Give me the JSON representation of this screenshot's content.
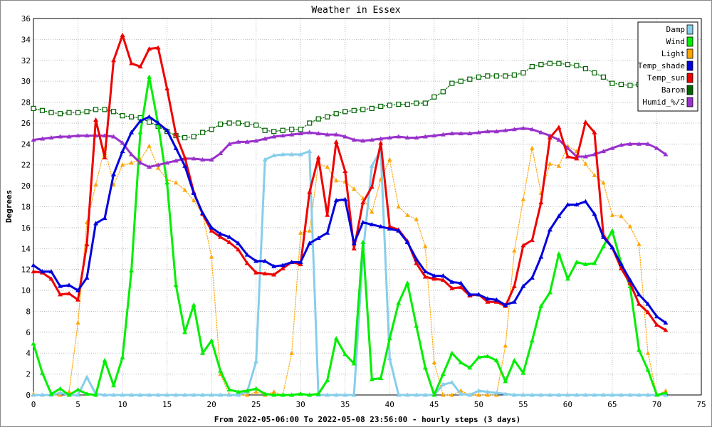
{
  "chart_data": {
    "type": "line",
    "title": "Weather in Essex",
    "xlabel": "From 2022-05-06:00 To 2022-05-08 23:56:00 - hourly steps (3 days)",
    "ylabel": "Degrees",
    "xlim": [
      0,
      75
    ],
    "ylim": [
      0,
      36
    ],
    "x_ticks": [
      0,
      5,
      10,
      15,
      20,
      25,
      30,
      35,
      40,
      45,
      50,
      55,
      60,
      65,
      70,
      75
    ],
    "y_ticks": [
      0,
      2,
      4,
      6,
      8,
      10,
      12,
      14,
      16,
      18,
      20,
      22,
      24,
      26,
      28,
      30,
      32,
      34,
      36
    ],
    "grid": true,
    "legend_position": "top-right",
    "series": [
      {
        "name": "Damp",
        "color": "#87ceeb",
        "style": "solid",
        "x": [
          0,
          1,
          2,
          3,
          4,
          5,
          6,
          7,
          8,
          9,
          10,
          11,
          12,
          13,
          14,
          15,
          16,
          17,
          18,
          19,
          20,
          21,
          22,
          23,
          24,
          25,
          26,
          27,
          28,
          29,
          30,
          31,
          32,
          33,
          34,
          35,
          36,
          37,
          38,
          39,
          40,
          41,
          42,
          43,
          44,
          45,
          46,
          47,
          48,
          49,
          50,
          51,
          52,
          53,
          54,
          55,
          56,
          57,
          58,
          59,
          60,
          61,
          62,
          63,
          64,
          65,
          66,
          67,
          68,
          69,
          70,
          71
        ],
        "values": [
          0,
          0,
          0,
          0.2,
          0,
          0,
          1.7,
          0.1,
          0,
          0,
          0,
          0,
          0,
          0,
          0,
          0,
          0,
          0,
          0,
          0,
          0,
          0,
          0,
          0,
          0.3,
          3.2,
          22.5,
          22.9,
          23.0,
          23.0,
          23.0,
          23.3,
          0,
          0,
          0,
          0,
          0,
          13.5,
          21.9,
          23.4,
          3.5,
          0,
          0,
          0,
          0,
          0,
          1.0,
          1.2,
          0.1,
          0,
          0.4,
          0.3,
          0.2,
          0.1,
          0,
          0,
          0,
          0,
          0,
          0,
          0,
          0,
          0,
          0,
          0,
          0,
          0,
          0,
          0,
          0,
          0,
          0
        ]
      },
      {
        "name": "Wind",
        "color": "#00ee00",
        "style": "thick",
        "x": [
          0,
          1,
          2,
          3,
          4,
          5,
          6,
          7,
          8,
          9,
          10,
          11,
          12,
          13,
          14,
          15,
          16,
          17,
          18,
          19,
          20,
          21,
          22,
          23,
          24,
          25,
          26,
          27,
          28,
          29,
          30,
          31,
          32,
          33,
          34,
          35,
          36,
          37,
          38,
          39,
          40,
          41,
          42,
          43,
          44,
          45,
          46,
          47,
          48,
          49,
          50,
          51,
          52,
          53,
          54,
          55,
          56,
          57,
          58,
          59,
          60,
          61,
          62,
          63,
          64,
          65,
          66,
          67,
          68,
          69,
          70,
          71
        ],
        "values": [
          4.9,
          2.1,
          0.1,
          0.6,
          0,
          0.5,
          0.1,
          0,
          3.3,
          0.9,
          3.6,
          11.9,
          25.1,
          30.4,
          25.9,
          20.3,
          10.5,
          6.0,
          8.6,
          4.0,
          5.2,
          2.3,
          0.5,
          0.3,
          0.4,
          0.6,
          0.1,
          0,
          0,
          0,
          0.1,
          0,
          0.1,
          1.4,
          5.4,
          3.9,
          3.0,
          14.6,
          1.5,
          1.6,
          5.4,
          8.8,
          10.7,
          6.6,
          2.6,
          0,
          2.0,
          4.0,
          3.1,
          2.6,
          3.6,
          3.7,
          3.3,
          1.3,
          3.3,
          2.1,
          5.2,
          8.5,
          9.8,
          13.5,
          11.1,
          12.7,
          12.5,
          12.6,
          14.2,
          15.7,
          12.6,
          10.4,
          4.3,
          2.4,
          0,
          0.2
        ]
      },
      {
        "name": "Light",
        "color": "#ffa500",
        "style": "dotted",
        "x": [
          0,
          1,
          2,
          3,
          4,
          5,
          6,
          7,
          8,
          9,
          10,
          11,
          12,
          13,
          14,
          15,
          16,
          17,
          18,
          19,
          20,
          21,
          22,
          23,
          24,
          25,
          26,
          27,
          28,
          29,
          30,
          31,
          32,
          33,
          34,
          35,
          36,
          37,
          38,
          39,
          40,
          41,
          42,
          43,
          44,
          45,
          46,
          47,
          48,
          49,
          50,
          51,
          52,
          53,
          54,
          55,
          56,
          57,
          58,
          59,
          60,
          61,
          62,
          63,
          64,
          65,
          66,
          67,
          68,
          69,
          70,
          71
        ],
        "values": [
          0.1,
          0,
          0,
          0,
          0.3,
          6.9,
          16.5,
          20.1,
          23.6,
          20.1,
          22.0,
          22.2,
          22.5,
          23.8,
          21.7,
          20.6,
          20.3,
          19.6,
          18.6,
          17.3,
          13.2,
          2.0,
          0,
          0,
          0,
          0.3,
          0,
          0.3,
          0,
          4.0,
          15.5,
          15.7,
          22.1,
          21.8,
          20.5,
          20.4,
          19.7,
          18.8,
          17.5,
          20.6,
          22.5,
          18.0,
          17.2,
          16.8,
          14.2,
          3.1,
          0,
          0,
          0.4,
          0,
          0,
          0,
          0,
          4.7,
          13.8,
          18.7,
          23.6,
          19.3,
          22.1,
          21.9,
          23.8,
          23.3,
          22.1,
          21.0,
          20.3,
          17.2,
          17.1,
          16.1,
          14.4,
          4.0,
          0,
          0.4
        ]
      },
      {
        "name": "Temp_shade",
        "color": "#0000dd",
        "style": "thick",
        "x": [
          0,
          1,
          2,
          3,
          4,
          5,
          6,
          7,
          8,
          9,
          10,
          11,
          12,
          13,
          14,
          15,
          16,
          17,
          18,
          19,
          20,
          21,
          22,
          23,
          24,
          25,
          26,
          27,
          28,
          29,
          30,
          31,
          32,
          33,
          34,
          35,
          36,
          37,
          38,
          39,
          40,
          41,
          42,
          43,
          44,
          45,
          46,
          47,
          48,
          49,
          50,
          51,
          52,
          53,
          54,
          55,
          56,
          57,
          58,
          59,
          60,
          61,
          62,
          63,
          64,
          65,
          66,
          67,
          68,
          69,
          70,
          71
        ],
        "values": [
          12.4,
          11.8,
          11.8,
          10.4,
          10.5,
          10.0,
          11.2,
          16.4,
          16.9,
          21.1,
          23.3,
          25.1,
          26.2,
          26.6,
          26.0,
          25.3,
          23.6,
          21.9,
          19.3,
          17.4,
          16.0,
          15.4,
          15.1,
          14.5,
          13.4,
          12.8,
          12.8,
          12.3,
          12.4,
          12.7,
          12.7,
          14.5,
          15.0,
          15.5,
          18.6,
          18.7,
          14.5,
          16.5,
          16.3,
          16.1,
          15.9,
          15.7,
          14.6,
          13.0,
          11.8,
          11.4,
          11.4,
          10.8,
          10.7,
          9.6,
          9.6,
          9.2,
          9.1,
          8.6,
          8.9,
          10.4,
          11.2,
          13.2,
          15.8,
          17.1,
          18.2,
          18.2,
          18.5,
          17.3,
          15.1,
          14.1,
          12.5,
          11.0,
          9.6,
          8.7,
          7.5,
          6.9
        ]
      },
      {
        "name": "Temp_sun",
        "color": "#ee0000",
        "style": "thick",
        "x": [
          0,
          1,
          2,
          3,
          4,
          5,
          6,
          7,
          8,
          9,
          10,
          11,
          12,
          13,
          14,
          15,
          16,
          17,
          18,
          19,
          20,
          21,
          22,
          23,
          24,
          25,
          26,
          27,
          28,
          29,
          30,
          31,
          32,
          33,
          34,
          35,
          36,
          37,
          38,
          39,
          40,
          41,
          42,
          43,
          44,
          45,
          46,
          47,
          48,
          49,
          50,
          51,
          52,
          53,
          54,
          55,
          56,
          57,
          58,
          59,
          60,
          61,
          62,
          63,
          64,
          65,
          66,
          67,
          68,
          69,
          70,
          71
        ],
        "values": [
          11.8,
          11.7,
          11.1,
          9.6,
          9.7,
          9.1,
          14.4,
          26.3,
          22.7,
          32.0,
          34.4,
          31.7,
          31.4,
          33.1,
          33.2,
          29.3,
          24.9,
          22.7,
          19.4,
          17.3,
          15.7,
          15.1,
          14.6,
          13.9,
          12.6,
          11.7,
          11.6,
          11.5,
          12.1,
          12.7,
          12.5,
          19.4,
          22.7,
          17.2,
          24.2,
          21.4,
          14.0,
          18.4,
          19.9,
          24.1,
          16.1,
          15.8,
          14.7,
          12.6,
          11.3,
          11.1,
          11.0,
          10.2,
          10.3,
          9.5,
          9.6,
          8.9,
          8.9,
          8.5,
          10.4,
          14.3,
          14.8,
          18.4,
          24.6,
          25.6,
          22.8,
          22.6,
          26.1,
          25.1,
          15.3,
          14.1,
          12.1,
          10.7,
          8.7,
          7.9,
          6.7,
          6.2
        ]
      },
      {
        "name": "Barom",
        "color": "#006400",
        "style": "dotted-square",
        "x": [
          0,
          1,
          2,
          3,
          4,
          5,
          6,
          7,
          8,
          9,
          10,
          11,
          12,
          13,
          14,
          15,
          16,
          17,
          18,
          19,
          20,
          21,
          22,
          23,
          24,
          25,
          26,
          27,
          28,
          29,
          30,
          31,
          32,
          33,
          34,
          35,
          36,
          37,
          38,
          39,
          40,
          41,
          42,
          43,
          44,
          45,
          46,
          47,
          48,
          49,
          50,
          51,
          52,
          53,
          54,
          55,
          56,
          57,
          58,
          59,
          60,
          61,
          62,
          63,
          64,
          65,
          66,
          67,
          68,
          69,
          70,
          71
        ],
        "values": [
          27.4,
          27.2,
          27.0,
          26.9,
          27.0,
          27.0,
          27.1,
          27.3,
          27.3,
          27.1,
          26.7,
          26.6,
          26.5,
          26.1,
          25.7,
          25.2,
          24.8,
          24.6,
          24.7,
          25.1,
          25.4,
          25.9,
          26.0,
          26.0,
          25.9,
          25.8,
          25.3,
          25.2,
          25.3,
          25.4,
          25.4,
          26.0,
          26.4,
          26.6,
          26.9,
          27.1,
          27.2,
          27.3,
          27.4,
          27.6,
          27.7,
          27.8,
          27.8,
          27.9,
          27.9,
          28.5,
          29.0,
          29.8,
          30.0,
          30.2,
          30.4,
          30.5,
          30.5,
          30.5,
          30.6,
          30.8,
          31.4,
          31.6,
          31.7,
          31.7,
          31.6,
          31.5,
          31.2,
          30.8,
          30.4,
          29.8,
          29.7,
          29.6,
          29.7,
          29.9,
          null,
          null
        ]
      },
      {
        "name": "Humid_%/2",
        "color": "#9932cc",
        "style": "thick",
        "x": [
          0,
          1,
          2,
          3,
          4,
          5,
          6,
          7,
          8,
          9,
          10,
          11,
          12,
          13,
          14,
          15,
          16,
          17,
          18,
          19,
          20,
          21,
          22,
          23,
          24,
          25,
          26,
          27,
          28,
          29,
          30,
          31,
          32,
          33,
          34,
          35,
          36,
          37,
          38,
          39,
          40,
          41,
          42,
          43,
          44,
          45,
          46,
          47,
          48,
          49,
          50,
          51,
          52,
          53,
          54,
          55,
          56,
          57,
          58,
          59,
          60,
          61,
          62,
          63,
          64,
          65,
          66,
          67,
          68,
          69,
          70,
          71
        ],
        "values": [
          24.4,
          24.5,
          24.6,
          24.7,
          24.7,
          24.8,
          24.8,
          24.8,
          24.8,
          24.7,
          24.1,
          23.0,
          22.2,
          21.8,
          22.0,
          22.2,
          22.4,
          22.6,
          22.6,
          22.5,
          22.5,
          23.1,
          24.0,
          24.2,
          24.2,
          24.3,
          24.5,
          24.7,
          24.8,
          24.9,
          25.0,
          25.1,
          25.0,
          24.9,
          24.9,
          24.7,
          24.4,
          24.3,
          24.4,
          24.5,
          24.6,
          24.7,
          24.6,
          24.6,
          24.7,
          24.8,
          24.9,
          25.0,
          25.0,
          25.0,
          25.1,
          25.2,
          25.2,
          25.3,
          25.4,
          25.5,
          25.4,
          25.1,
          24.8,
          24.4,
          23.6,
          22.8,
          22.8,
          23.0,
          23.3,
          23.6,
          23.9,
          24.0,
          24.0,
          24.0,
          23.6,
          23.0
        ]
      }
    ]
  }
}
